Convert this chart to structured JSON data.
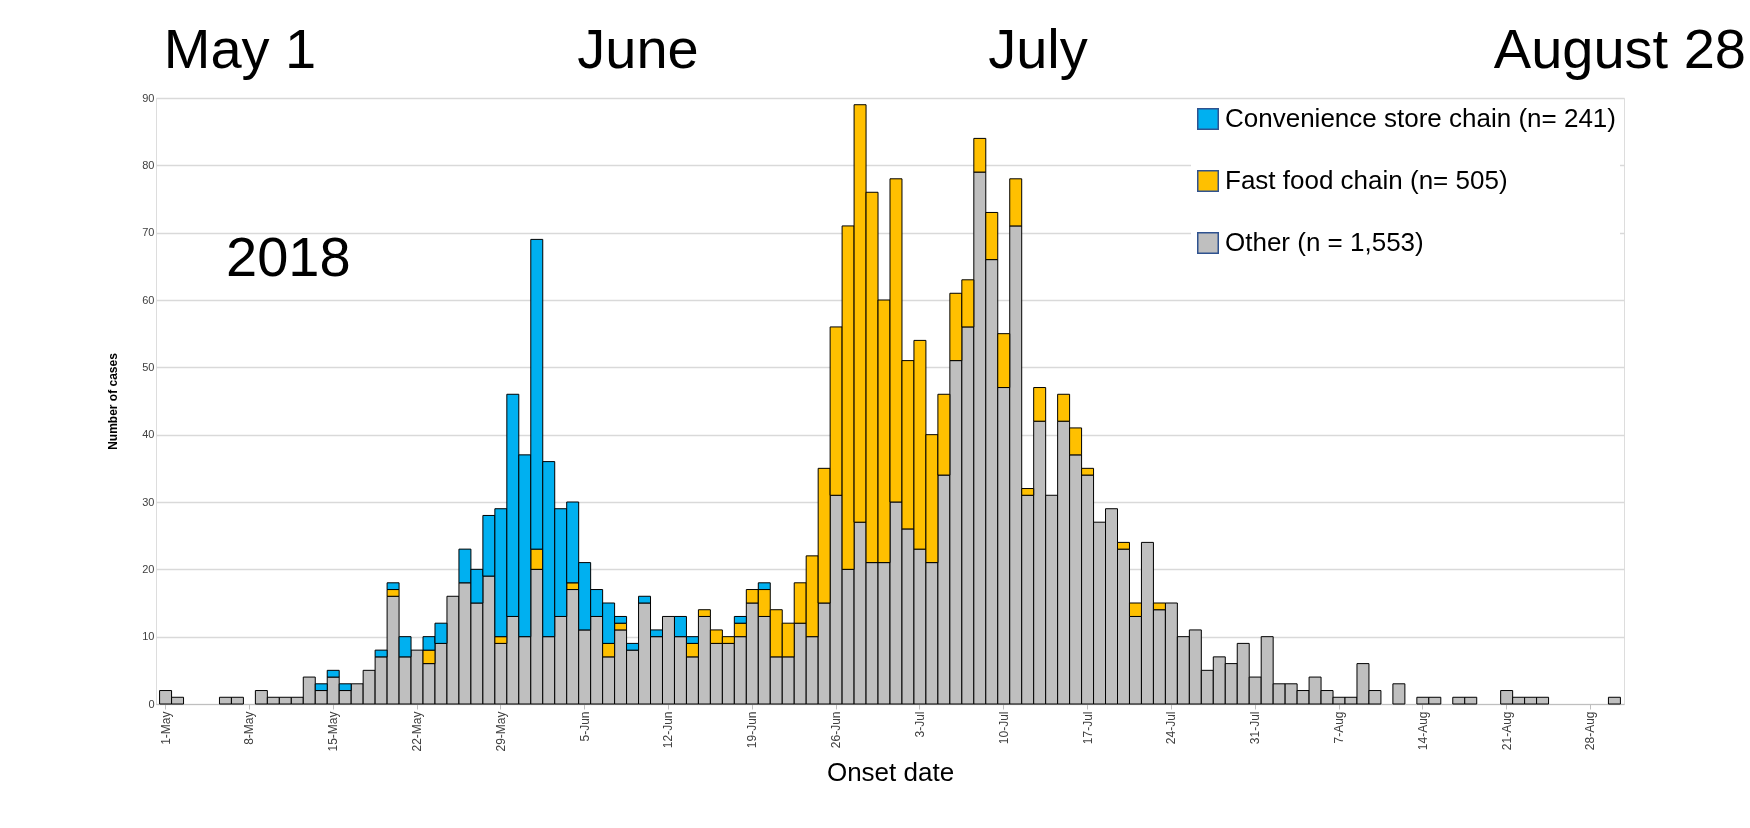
{
  "chart_data": {
    "type": "bar",
    "stacked": true,
    "ylabel": "Number of cases",
    "xlabel": "Onset date",
    "annotations": [
      "May 1",
      "June",
      "July",
      "August 28",
      "2018"
    ],
    "categories": [
      "1-May",
      null,
      null,
      null,
      null,
      null,
      null,
      "8-May",
      null,
      null,
      null,
      null,
      null,
      null,
      "15-May",
      null,
      null,
      null,
      null,
      null,
      null,
      "22-May",
      null,
      null,
      null,
      null,
      null,
      null,
      "29-May",
      null,
      null,
      null,
      null,
      null,
      null,
      "5-Jun",
      null,
      null,
      null,
      null,
      null,
      null,
      "12-Jun",
      null,
      null,
      null,
      null,
      null,
      null,
      "19-Jun",
      null,
      null,
      null,
      null,
      null,
      null,
      "26-Jun",
      null,
      null,
      null,
      null,
      null,
      null,
      "3-Jul",
      null,
      null,
      null,
      null,
      null,
      null,
      "10-Jul",
      null,
      null,
      null,
      null,
      null,
      null,
      "17-Jul",
      null,
      null,
      null,
      null,
      null,
      null,
      "24-Jul",
      null,
      null,
      null,
      null,
      null,
      null,
      "31-Jul",
      null,
      null,
      null,
      null,
      null,
      null,
      "7-Aug",
      null,
      null,
      null,
      null,
      null,
      null,
      "14-Aug",
      null,
      null,
      null,
      null,
      null,
      null,
      "21-Aug",
      null,
      null,
      null,
      null,
      null,
      null,
      "28-Aug",
      null,
      null
    ],
    "series": [
      {
        "name": "Other (n = 1,553)",
        "color": "#bfbfbf",
        "values": [
          2,
          1,
          0,
          0,
          0,
          1,
          1,
          0,
          2,
          1,
          1,
          1,
          4,
          2,
          4,
          2,
          3,
          5,
          7,
          16,
          7,
          8,
          6,
          9,
          16,
          18,
          15,
          19,
          9,
          13,
          10,
          20,
          10,
          13,
          17,
          11,
          13,
          7,
          11,
          8,
          15,
          10,
          13,
          10,
          7,
          13,
          9,
          9,
          10,
          15,
          13,
          7,
          7,
          12,
          10,
          15,
          31,
          20,
          27,
          21,
          21,
          30,
          26,
          23,
          21,
          34,
          51,
          56,
          79,
          66,
          47,
          71,
          31,
          42,
          31,
          42,
          37,
          34,
          27,
          29,
          23,
          13,
          24,
          14,
          15,
          10,
          11,
          5,
          7,
          6,
          9,
          4,
          10,
          3,
          3,
          2,
          4,
          2,
          1,
          1,
          6,
          2,
          0,
          3,
          0,
          1,
          1,
          0,
          1,
          1,
          0,
          0,
          2,
          1,
          1,
          1,
          0,
          0,
          0,
          0,
          0,
          1
        ]
      },
      {
        "name": "Fast food chain (n= 505)",
        "color": "#ffc000",
        "values": [
          0,
          0,
          0,
          0,
          0,
          0,
          0,
          0,
          0,
          0,
          0,
          0,
          0,
          0,
          0,
          0,
          0,
          0,
          0,
          1,
          0,
          0,
          2,
          0,
          0,
          0,
          0,
          0,
          1,
          0,
          0,
          3,
          0,
          0,
          1,
          0,
          0,
          2,
          1,
          0,
          0,
          0,
          0,
          0,
          2,
          1,
          2,
          1,
          2,
          2,
          4,
          7,
          5,
          6,
          12,
          20,
          25,
          51,
          62,
          55,
          39,
          48,
          25,
          31,
          19,
          12,
          10,
          7,
          5,
          7,
          8,
          7,
          1,
          5,
          0,
          4,
          4,
          1,
          0,
          0,
          1,
          2,
          0,
          1,
          0,
          0,
          0,
          0,
          0,
          0,
          0,
          0,
          0,
          0,
          0,
          0,
          0,
          0,
          0,
          0,
          0,
          0,
          0,
          0,
          0,
          0,
          0,
          0,
          0,
          0,
          0,
          0,
          0,
          0,
          0,
          0,
          0,
          0,
          0,
          0,
          0,
          0
        ]
      },
      {
        "name": "Convenience store chain (n= 241)",
        "color": "#00b0f0",
        "values": [
          0,
          0,
          0,
          0,
          0,
          0,
          0,
          0,
          0,
          0,
          0,
          0,
          0,
          1,
          1,
          1,
          0,
          0,
          1,
          1,
          3,
          0,
          2,
          3,
          0,
          5,
          5,
          9,
          19,
          33,
          27,
          46,
          26,
          16,
          12,
          10,
          4,
          6,
          1,
          1,
          1,
          1,
          0,
          3,
          1,
          0,
          0,
          0,
          1,
          0,
          1,
          0,
          0,
          0,
          0,
          0,
          0,
          0,
          0,
          0,
          0,
          0,
          0,
          0,
          0,
          0,
          0,
          0,
          0,
          0,
          0,
          0,
          0,
          0,
          0,
          0,
          0,
          0,
          0,
          0,
          0,
          0,
          0,
          0,
          0,
          0,
          0,
          0,
          0,
          0,
          0,
          0,
          0,
          0,
          0,
          0,
          0,
          0,
          0,
          0,
          0,
          0,
          0,
          0,
          0,
          0,
          0,
          0,
          0,
          0,
          0,
          0,
          0,
          0,
          0,
          0,
          0,
          0,
          0,
          0,
          0,
          0
        ]
      }
    ],
    "ylim": [
      0,
      90
    ],
    "yticks": [
      0,
      10,
      20,
      30,
      40,
      50,
      60,
      70,
      80,
      90
    ],
    "grid": "y",
    "legend": "top right"
  }
}
